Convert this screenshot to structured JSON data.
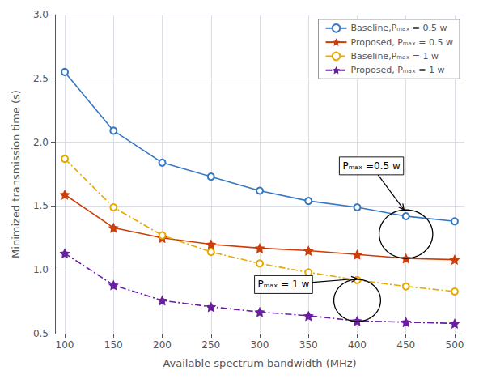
{
  "chart_data": {
    "type": "line",
    "x": [
      100,
      150,
      200,
      250,
      300,
      350,
      400,
      450,
      500
    ],
    "xlabel": "Available spectrum bandwidth (MHz)",
    "ylabel": "Minimized transmission time (s)",
    "xlim": [
      90,
      510
    ],
    "ylim": [
      0.5,
      3.0
    ],
    "xticks": [
      100,
      150,
      200,
      250,
      300,
      350,
      400,
      450,
      500
    ],
    "yticks": [
      0.5,
      {
        "value": 1.0,
        "label": "1.0"
      },
      1.5,
      {
        "value": 2.0,
        "label": "2.0"
      },
      2.5,
      {
        "value": 3.0,
        "label": "3.0"
      }
    ],
    "grid": true,
    "legend": "upper right",
    "series": [
      {
        "name": "Baseline,Pₘₐₓ = 0.5 w",
        "color": "#3777C2",
        "marker": "circle",
        "line_style": "solid",
        "values": [
          2.55,
          2.09,
          1.84,
          1.73,
          1.62,
          1.54,
          1.49,
          1.42,
          1.38
        ]
      },
      {
        "name": "Proposed, Pₘₐₓ = 0.5 w",
        "color": "#CC3D0A",
        "marker": "star",
        "line_style": "solid",
        "values": [
          1.59,
          1.33,
          1.25,
          1.2,
          1.17,
          1.15,
          1.12,
          1.09,
          1.08
        ]
      },
      {
        "name": "Baseline,Pₘₐₓ = 1 w",
        "color": "#E8A800",
        "marker": "circle",
        "line_style": "dashdot",
        "values": [
          1.87,
          1.49,
          1.27,
          1.14,
          1.05,
          0.98,
          0.92,
          0.87,
          0.83
        ]
      },
      {
        "name": "Proposed, Pₘₐₓ = 1 w",
        "color": "#6A1FA0",
        "marker": "star",
        "line_style": "dashdot",
        "values": [
          1.13,
          0.88,
          0.76,
          0.71,
          0.67,
          0.64,
          0.6,
          0.59,
          0.58
        ]
      }
    ],
    "annotations": [
      {
        "text": "Pₘₐₓ =0.5 w",
        "x": 448,
        "y": 1.47,
        "text_x": 385,
        "text_y": 1.77,
        "ellipse": {
          "x": 450,
          "y": 1.28,
          "width": 55,
          "height": 0.38
        }
      },
      {
        "text": "Pₘₐₓ = 1 w",
        "x": 400,
        "y": 0.93,
        "text_x": 298,
        "text_y": 0.84,
        "ellipse": {
          "x": 400,
          "y": 0.76,
          "width": 48,
          "height": 0.33
        }
      }
    ]
  }
}
